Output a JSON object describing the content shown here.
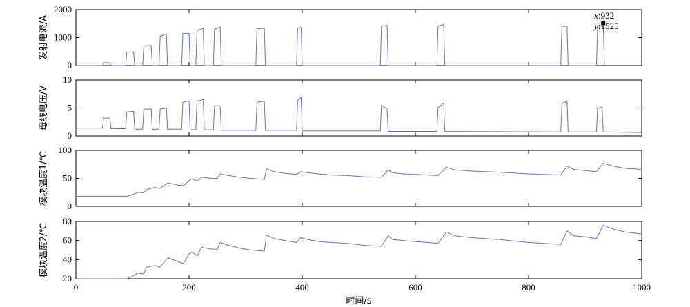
{
  "chart_data": {
    "type": "line",
    "xlabel": "时间/s",
    "xlim": [
      0,
      1000
    ],
    "xticks": [
      0,
      200,
      400,
      600,
      800,
      1000
    ],
    "line_color": "#6b6fc4",
    "grid": false,
    "subplots": [
      {
        "ylabel": "发射电流/A",
        "ylim": [
          0,
          2000
        ],
        "yticks": [
          0,
          1000,
          2000
        ],
        "series": [
          {
            "x": [
              0,
              47,
              49,
              60,
              62,
              88,
              90,
              102,
              104,
              118,
              120,
              133,
              135,
              147,
              149,
              160,
              162,
              187,
              189,
              200,
              202,
              212,
              214,
              225,
              227,
              243,
              245,
              255,
              257,
              318,
              320,
              333,
              335,
              390,
              392,
              398,
              400,
              538,
              540,
              550,
              552,
              638,
              640,
              650,
              652,
              857,
              859,
              868,
              870,
              920,
              922,
              930,
              932,
              934
            ],
            "y": [
              0,
              0,
              100,
              100,
              0,
              0,
              480,
              490,
              0,
              0,
              700,
              720,
              0,
              0,
              1050,
              1130,
              0,
              0,
              1150,
              1150,
              0,
              0,
              1250,
              1330,
              0,
              0,
              1300,
              1380,
              0,
              0,
              1320,
              1330,
              0,
              0,
              1350,
              1360,
              0,
              0,
              1400,
              1440,
              0,
              0,
              1400,
              1480,
              0,
              0,
              1410,
              1400,
              0,
              0,
              1330,
              1450,
              1525,
              0
            ]
          }
        ],
        "annotation": {
          "x_label": "x",
          "x_value": "932",
          "y_label": "y",
          "y_value": "1525",
          "x": 932,
          "y": 1525
        }
      },
      {
        "ylabel": "母线电压/V",
        "ylim": [
          0,
          10
        ],
        "yticks": [
          0,
          5,
          10
        ],
        "series": [
          {
            "x": [
              0,
              47,
              49,
              60,
              62,
              88,
              90,
              102,
              104,
              118,
              120,
              133,
              135,
              147,
              149,
              160,
              162,
              187,
              189,
              200,
              202,
              212,
              214,
              225,
              227,
              243,
              245,
              255,
              257,
              318,
              320,
              333,
              335,
              390,
              392,
              398,
              400,
              538,
              540,
              550,
              552,
              638,
              640,
              650,
              652,
              857,
              859,
              868,
              870,
              920,
              922,
              930,
              932,
              1000
            ],
            "y": [
              1.4,
              1.4,
              3.2,
              3.2,
              1.3,
              1.3,
              4.3,
              4.4,
              1.2,
              1.2,
              4.8,
              4.8,
              1.2,
              1.2,
              4.8,
              5.0,
              1.2,
              1.2,
              6.0,
              6.3,
              1.1,
              1.1,
              6.2,
              6.5,
              1.1,
              1.1,
              5.4,
              5.4,
              1.0,
              1.0,
              6.0,
              6.2,
              1.0,
              1.0,
              6.4,
              6.9,
              0.9,
              0.9,
              5.5,
              4.8,
              0.8,
              0.8,
              5.0,
              5.9,
              0.8,
              0.7,
              5.8,
              6.2,
              0.7,
              0.7,
              4.9,
              5.2,
              0.7,
              0.6
            ]
          }
        ]
      },
      {
        "ylabel": "模块温度1/℃",
        "ylim": [
          0,
          100
        ],
        "yticks": [
          0,
          50,
          100
        ],
        "series": [
          {
            "x": [
              0,
              90,
              98,
              110,
              120,
              125,
              140,
              148,
              160,
              163,
              180,
              190,
              200,
              205,
              215,
              222,
              240,
              250,
              255,
              270,
              290,
              310,
              333,
              337,
              350,
              370,
              390,
              397,
              410,
              430,
              450,
              480,
              510,
              540,
              552,
              560,
              580,
              600,
              620,
              640,
              655,
              670,
              700,
              750,
              800,
              857,
              868,
              880,
              900,
              920,
              932,
              950,
              970,
              1000
            ],
            "y": [
              18,
              18,
              20,
              25,
              24,
              30,
              34,
              32,
              40,
              42,
              38,
              37,
              46,
              49,
              45,
              52,
              50,
              50,
              58,
              55,
              52,
              50,
              48,
              67,
              62,
              59,
              57,
              62,
              60,
              58,
              56,
              55,
              53,
              52,
              65,
              60,
              58,
              57,
              56,
              55,
              70,
              65,
              63,
              61,
              58,
              56,
              72,
              66,
              64,
              62,
              77,
              72,
              68,
              66
            ]
          }
        ]
      },
      {
        "ylabel": "模块温度2/℃",
        "ylim": [
          20,
          80
        ],
        "yticks": [
          20,
          40,
          60,
          80
        ],
        "series": [
          {
            "x": [
              0,
              90,
              98,
              110,
              120,
              125,
              140,
              148,
              160,
              163,
              180,
              190,
              200,
              205,
              215,
              222,
              240,
              250,
              255,
              270,
              290,
              310,
              333,
              337,
              350,
              370,
              390,
              397,
              410,
              430,
              450,
              480,
              510,
              540,
              552,
              560,
              580,
              600,
              620,
              640,
              655,
              670,
              700,
              750,
              800,
              857,
              868,
              880,
              900,
              920,
              932,
              950,
              970,
              1000
            ],
            "y": [
              20,
              20,
              22,
              26,
              25,
              32,
              34,
              32,
              40,
              42,
              38,
              36,
              46,
              48,
              44,
              53,
              51,
              51,
              58,
              55,
              52,
              50,
              49,
              66,
              62,
              60,
              58,
              63,
              61,
              59,
              58,
              57,
              55,
              54,
              65,
              61,
              60,
              59,
              58,
              57,
              69,
              65,
              63,
              61,
              58,
              56,
              70,
              65,
              64,
              62,
              76,
              72,
              69,
              67
            ]
          }
        ]
      }
    ]
  }
}
